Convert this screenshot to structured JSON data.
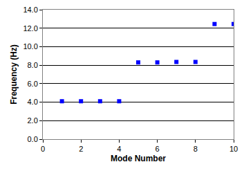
{
  "chart_data": {
    "type": "scatter",
    "x_label": "Mode Number",
    "y_label": "Frequency (Hz)",
    "x": [
      1,
      2,
      3,
      4,
      5,
      6,
      7,
      8,
      9,
      10
    ],
    "values": [
      4.1,
      4.1,
      4.1,
      4.1,
      8.3,
      8.3,
      8.35,
      8.35,
      12.45,
      12.45
    ],
    "color": "#0000ff",
    "marker": "square",
    "xlim": [
      0,
      10
    ],
    "xticks": [
      0,
      2,
      4,
      6,
      8,
      10
    ],
    "ylim": [
      0,
      14
    ],
    "yticks": [
      {
        "value": 0,
        "label": "0.0"
      },
      {
        "value": 2,
        "label": "2.0"
      },
      {
        "value": 4,
        "label": "4.0"
      },
      {
        "value": 6,
        "label": "6.0"
      },
      {
        "value": 8,
        "label": "8.0"
      },
      {
        "value": 10,
        "label": "10.0"
      },
      {
        "value": 12,
        "label": "12.0"
      },
      {
        "value": 14,
        "label": "14.0"
      }
    ],
    "grid": "y"
  }
}
